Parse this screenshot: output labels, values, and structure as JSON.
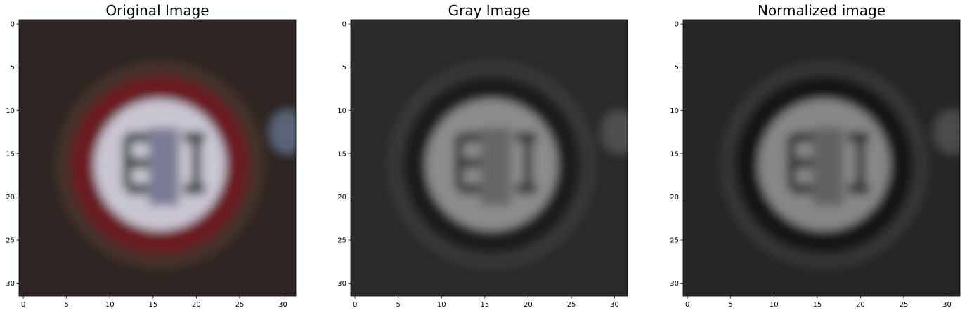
{
  "chart_data": [
    {
      "type": "image",
      "title": "Original Image",
      "xlim": [
        -0.5,
        31.5
      ],
      "ylim": [
        31.5,
        -0.5
      ],
      "xticks": [
        0,
        5,
        10,
        15,
        20,
        25,
        30
      ],
      "yticks": [
        0,
        5,
        10,
        15,
        20,
        25,
        30
      ]
    },
    {
      "type": "image",
      "title": "Gray Image",
      "xlim": [
        -0.5,
        31.5
      ],
      "ylim": [
        31.5,
        -0.5
      ],
      "xticks": [
        0,
        5,
        10,
        15,
        20,
        25,
        30
      ],
      "yticks": [
        0,
        5,
        10,
        15,
        20,
        25,
        30
      ]
    },
    {
      "type": "image",
      "title": "Normalized image",
      "xlim": [
        -0.5,
        31.5
      ],
      "ylim": [
        31.5,
        -0.5
      ],
      "xticks": [
        0,
        5,
        10,
        15,
        20,
        25,
        30
      ],
      "yticks": [
        0,
        5,
        10,
        15,
        20,
        25,
        30
      ]
    }
  ]
}
